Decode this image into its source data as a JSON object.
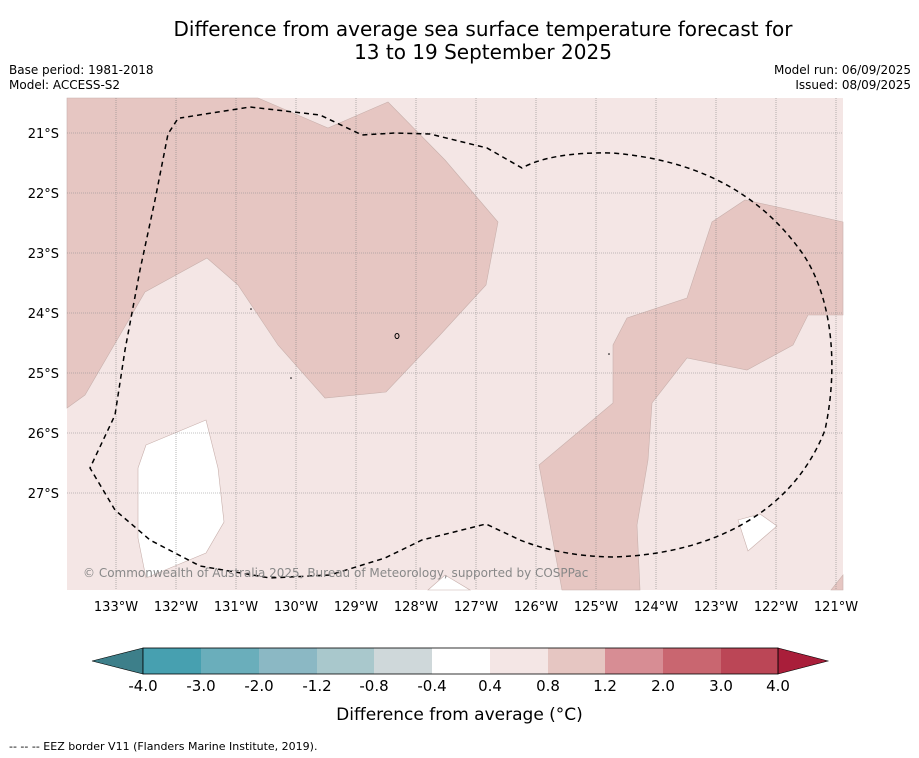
{
  "title_line1": "Difference from average sea surface temperature forecast for",
  "title_line2": "13 to 19 September 2025",
  "base_period": "Base period: 1981-2018",
  "model": "Model: ACCESS-S2",
  "model_run": "Model run: 06/09/2025",
  "issued": "Issued: 08/09/2025",
  "copyright": "© Commonwealth of Australia 2025, Bureau of Meteorology, supported by COSPPac",
  "lat_labels": [
    "21°S",
    "22°S",
    "23°S",
    "24°S",
    "25°S",
    "26°S",
    "27°S"
  ],
  "lon_labels": [
    "133°W",
    "132°W",
    "131°W",
    "130°W",
    "129°W",
    "128°W",
    "127°W",
    "126°W",
    "125°W",
    "124°W",
    "123°W",
    "122°W",
    "121°W"
  ],
  "colorbar": {
    "title": "Difference from average (°C)",
    "tick_labels": [
      "-4.0",
      "-3.0",
      "-2.0",
      "-1.2",
      "-0.8",
      "-0.4",
      "0.4",
      "0.8",
      "1.2",
      "2.0",
      "3.0",
      "4.0"
    ],
    "colors": [
      "#3d7f8a",
      "#47a0b0",
      "#6aaebb",
      "#8bb8c4",
      "#a9c8cc",
      "#cfd8da",
      "#ffffff",
      "#f4e6e5",
      "#e6c6c2",
      "#d78d94",
      "#c96670",
      "#bb4656",
      "#a91e3a"
    ]
  },
  "map_colors": {
    "light_band": "#f4e6e5",
    "warm_band": "#e6c6c2",
    "neutral": "#ffffff"
  },
  "footer": "-- -- -- EEZ border V11 (Flanders Marine Institute, 2019)."
}
